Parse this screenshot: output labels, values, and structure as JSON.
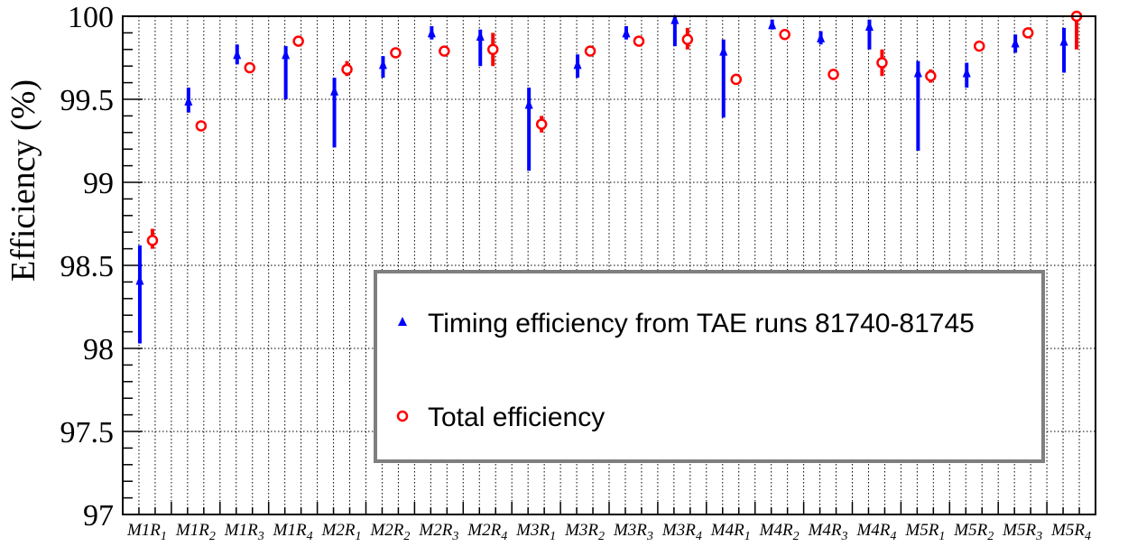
{
  "chart_data": {
    "type": "scatter",
    "ylabel": "Efficiency  (%)",
    "ylim": [
      97,
      100
    ],
    "yticks": [
      {
        "value": 97,
        "label": "97"
      },
      {
        "value": 97.5,
        "label": "97.5"
      },
      {
        "value": 98,
        "label": "98"
      },
      {
        "value": 98.5,
        "label": "98.5"
      },
      {
        "value": 99,
        "label": "99"
      },
      {
        "value": 99.5,
        "label": "99.5"
      },
      {
        "value": 100,
        "label": "100"
      }
    ],
    "categories": [
      {
        "main": "M1R",
        "sub": "1"
      },
      {
        "main": "M1R",
        "sub": "2"
      },
      {
        "main": "M1R",
        "sub": "3"
      },
      {
        "main": "M1R",
        "sub": "4"
      },
      {
        "main": "M2R",
        "sub": "1"
      },
      {
        "main": "M2R",
        "sub": "2"
      },
      {
        "main": "M2R",
        "sub": "3"
      },
      {
        "main": "M2R",
        "sub": "4"
      },
      {
        "main": "M3R",
        "sub": "1"
      },
      {
        "main": "M3R",
        "sub": "2"
      },
      {
        "main": "M3R",
        "sub": "3"
      },
      {
        "main": "M3R",
        "sub": "4"
      },
      {
        "main": "M4R",
        "sub": "1"
      },
      {
        "main": "M4R",
        "sub": "2"
      },
      {
        "main": "M4R",
        "sub": "3"
      },
      {
        "main": "M4R",
        "sub": "4"
      },
      {
        "main": "M5R",
        "sub": "1"
      },
      {
        "main": "M5R",
        "sub": "2"
      },
      {
        "main": "M5R",
        "sub": "3"
      },
      {
        "main": "M5R",
        "sub": "4"
      }
    ],
    "grid": true,
    "legend_position": "bottom-right",
    "series": [
      {
        "name": "Timing efficiency from TAE runs 81740-81745",
        "marker": "triangle",
        "color": "#0000ff",
        "values": [
          98.41,
          99.49,
          99.77,
          99.77,
          99.55,
          99.71,
          99.9,
          99.88,
          99.47,
          99.71,
          99.9,
          99.98,
          99.79,
          99.95,
          99.87,
          99.94,
          99.66,
          99.66,
          99.84,
          99.85
        ],
        "err_low": [
          98.03,
          99.42,
          99.71,
          99.5,
          99.21,
          99.63,
          99.86,
          99.7,
          99.07,
          99.63,
          99.86,
          99.82,
          99.39,
          99.92,
          99.83,
          99.8,
          99.19,
          99.57,
          99.78,
          99.66
        ],
        "err_high": [
          98.62,
          99.57,
          99.83,
          99.82,
          99.63,
          99.76,
          99.94,
          99.92,
          99.57,
          99.77,
          99.94,
          100,
          99.86,
          99.98,
          99.91,
          99.98,
          99.73,
          99.72,
          99.89,
          99.93
        ]
      },
      {
        "name": "Total efficiency",
        "marker": "open-circle",
        "color": "#ff0000",
        "values": [
          98.65,
          99.34,
          99.69,
          99.85,
          99.68,
          99.78,
          99.79,
          99.8,
          99.35,
          99.79,
          99.85,
          99.86,
          99.62,
          99.89,
          99.65,
          99.72,
          99.64,
          99.82,
          99.9,
          100
        ],
        "err_low": [
          98.6,
          99.31,
          99.68,
          99.83,
          99.64,
          99.76,
          99.76,
          99.7,
          99.3,
          99.78,
          99.83,
          99.8,
          99.6,
          99.87,
          99.62,
          99.64,
          99.6,
          99.8,
          99.87,
          99.8
        ],
        "err_high": [
          98.72,
          99.37,
          99.71,
          99.88,
          99.73,
          99.8,
          99.82,
          99.9,
          99.4,
          99.8,
          99.87,
          99.93,
          99.64,
          99.91,
          99.68,
          99.8,
          99.68,
          99.84,
          99.93,
          100
        ]
      }
    ]
  }
}
